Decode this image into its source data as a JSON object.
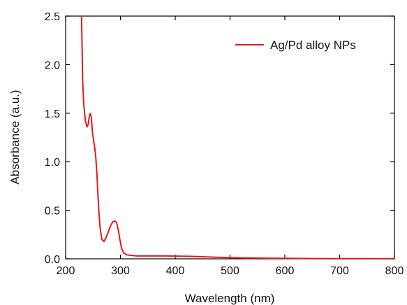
{
  "chart_data": {
    "type": "line",
    "title": "",
    "xlabel": "Wavelength (nm)",
    "ylabel": "Absorbance (a.u.)",
    "xlim": [
      200,
      800
    ],
    "ylim": [
      0.0,
      2.5
    ],
    "x_ticks": [
      200,
      300,
      400,
      500,
      600,
      700,
      800
    ],
    "y_ticks": [
      0.0,
      0.5,
      1.0,
      1.5,
      2.0,
      2.5
    ],
    "x_tick_labels": [
      "200",
      "300",
      "400",
      "500",
      "600",
      "700",
      "800"
    ],
    "y_tick_labels": [
      "0.0",
      "0.5",
      "1.0",
      "1.5",
      "2.0",
      "2.5"
    ],
    "grid": false,
    "legend_position": "top-right",
    "series": [
      {
        "name": "Ag/Pd alloy NPs",
        "color": "#e31a1c",
        "points": [
          [
            229,
            2.5
          ],
          [
            230,
            2.2
          ],
          [
            231,
            1.85
          ],
          [
            233,
            1.6
          ],
          [
            236,
            1.42
          ],
          [
            239,
            1.36
          ],
          [
            241,
            1.38
          ],
          [
            243,
            1.46
          ],
          [
            245,
            1.5
          ],
          [
            247,
            1.45
          ],
          [
            249,
            1.3
          ],
          [
            251,
            1.22
          ],
          [
            253,
            1.15
          ],
          [
            255,
            1.05
          ],
          [
            257,
            0.88
          ],
          [
            259,
            0.66
          ],
          [
            261,
            0.46
          ],
          [
            263,
            0.32
          ],
          [
            266,
            0.2
          ],
          [
            270,
            0.18
          ],
          [
            274,
            0.22
          ],
          [
            278,
            0.28
          ],
          [
            282,
            0.34
          ],
          [
            286,
            0.38
          ],
          [
            290,
            0.39
          ],
          [
            293,
            0.37
          ],
          [
            296,
            0.3
          ],
          [
            299,
            0.2
          ],
          [
            302,
            0.11
          ],
          [
            306,
            0.06
          ],
          [
            312,
            0.04
          ],
          [
            330,
            0.03
          ],
          [
            380,
            0.03
          ],
          [
            430,
            0.025
          ],
          [
            480,
            0.015
          ],
          [
            520,
            0.01
          ],
          [
            560,
            0.007
          ],
          [
            600,
            0.005
          ],
          [
            650,
            0.003
          ],
          [
            700,
            0.002
          ],
          [
            750,
            0.002
          ],
          [
            800,
            0.001
          ]
        ]
      }
    ]
  }
}
